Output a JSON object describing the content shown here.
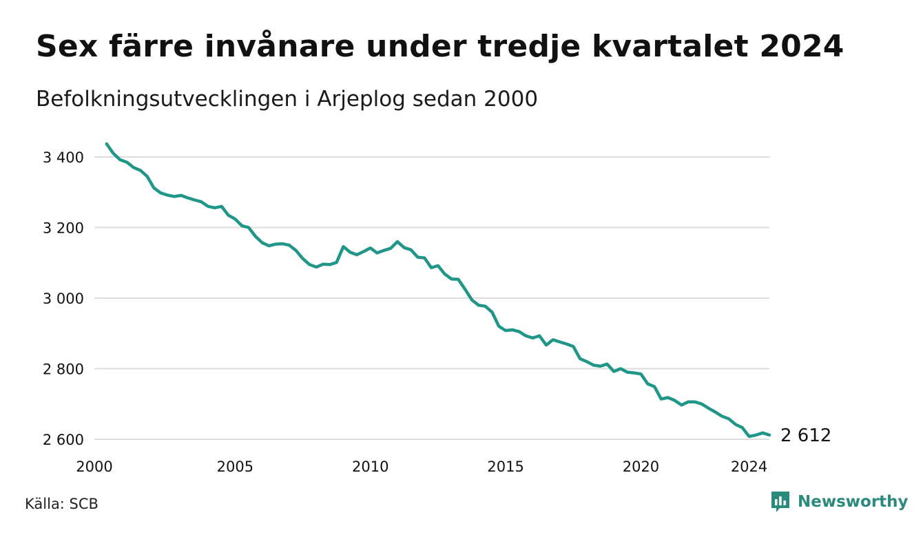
{
  "title": "Sex färre invånare under tredje kvartalet 2024",
  "subtitle": "Befolkningsutvecklingen i Arjeplog sedan 2000",
  "source": "Källa: SCB",
  "brand": {
    "name": "Newsworthy",
    "color": "#2a8a7c"
  },
  "colors": {
    "line": "#1f9688",
    "grid": "#dddddd",
    "text": "#111111"
  },
  "chart_data": {
    "type": "line",
    "title": "Sex färre invånare under tredje kvartalet 2024",
    "subtitle": "Befolkningsutvecklingen i Arjeplog sedan 2000",
    "xlabel": "",
    "ylabel": "",
    "xlim": [
      2000,
      2024.75
    ],
    "ylim": [
      2590,
      3445
    ],
    "x_ticks": [
      2000,
      2005,
      2010,
      2015,
      2020,
      2024
    ],
    "x_tick_labels": [
      "2000",
      "2005",
      "2010",
      "2015",
      "2020",
      "2024"
    ],
    "y_ticks": [
      2600,
      2800,
      3000,
      3200,
      3400
    ],
    "y_tick_labels": [
      "2 600",
      "2 800",
      "3 000",
      "3 200",
      "3 400"
    ],
    "grid": "horizontal",
    "end_label": "2 612",
    "series": [
      {
        "x": [
          2000.25,
          2000.5,
          2000.75,
          2001,
          2001.25,
          2001.5,
          2001.75,
          2002,
          2002.25,
          2002.5,
          2002.75,
          2003,
          2003.25,
          2003.5,
          2003.75,
          2004,
          2004.25,
          2004.5,
          2004.75,
          2005,
          2005.25,
          2005.5,
          2005.75,
          2006,
          2006.25,
          2006.5,
          2006.75,
          2007,
          2007.25,
          2007.5,
          2007.75,
          2008,
          2008.25,
          2008.5,
          2008.75,
          2009,
          2009.25,
          2009.5,
          2009.75,
          2010,
          2010.25,
          2010.5,
          2010.75,
          2011,
          2011.25,
          2011.5,
          2011.75,
          2012,
          2012.25,
          2012.5,
          2012.75,
          2013,
          2013.25,
          2013.5,
          2013.75,
          2014,
          2014.25,
          2014.5,
          2014.75,
          2015,
          2015.25,
          2015.5,
          2015.75,
          2016,
          2016.25,
          2016.5,
          2016.75,
          2017,
          2017.25,
          2017.5,
          2017.75,
          2018,
          2018.25,
          2018.5,
          2018.75,
          2019,
          2019.25,
          2019.5,
          2019.75,
          2020,
          2020.25,
          2020.5,
          2020.75,
          2021,
          2021.25,
          2021.5,
          2021.75,
          2022,
          2022.25,
          2022.5,
          2022.75,
          2023,
          2023.25,
          2023.5,
          2023.75,
          2024,
          2024.25,
          2024.5,
          2024.75
        ],
        "values": [
          3437,
          3410,
          3392,
          3385,
          3370,
          3362,
          3345,
          3312,
          3298,
          3292,
          3288,
          3291,
          3284,
          3278,
          3273,
          3260,
          3256,
          3260,
          3235,
          3224,
          3205,
          3200,
          3175,
          3157,
          3148,
          3153,
          3154,
          3150,
          3135,
          3112,
          3095,
          3088,
          3096,
          3095,
          3101,
          3146,
          3130,
          3123,
          3132,
          3142,
          3128,
          3135,
          3141,
          3160,
          3143,
          3137,
          3116,
          3114,
          3086,
          3092,
          3068,
          3054,
          3053,
          3025,
          2995,
          2980,
          2977,
          2960,
          2920,
          2908,
          2910,
          2905,
          2893,
          2887,
          2893,
          2867,
          2882,
          2876,
          2870,
          2863,
          2828,
          2820,
          2810,
          2807,
          2813,
          2792,
          2800,
          2790,
          2788,
          2785,
          2757,
          2749,
          2714,
          2718,
          2710,
          2697,
          2706,
          2706,
          2700,
          2688,
          2677,
          2665,
          2658,
          2642,
          2633,
          2608,
          2612,
          2618,
          2612
        ]
      }
    ]
  }
}
